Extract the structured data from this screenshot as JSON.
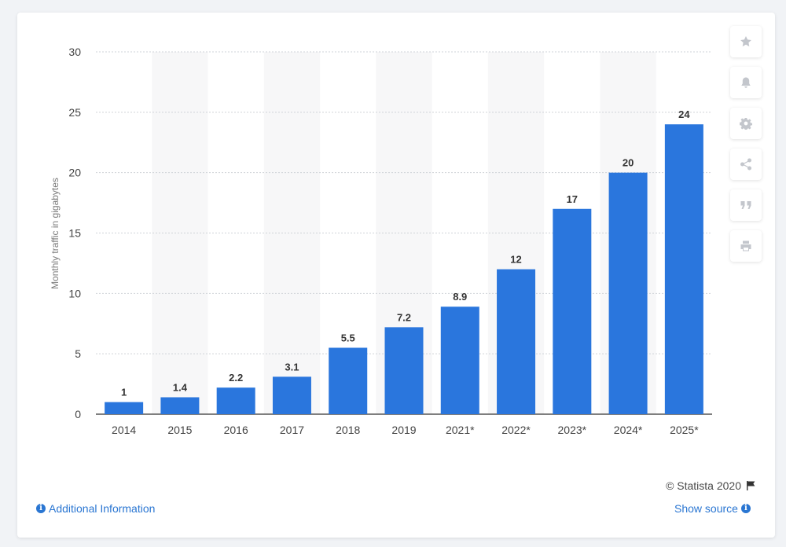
{
  "chart_data": {
    "type": "bar",
    "categories": [
      "2014",
      "2015",
      "2016",
      "2017",
      "2018",
      "2019",
      "2021*",
      "2022*",
      "2023*",
      "2024*",
      "2025*"
    ],
    "values": [
      1,
      1.4,
      2.2,
      3.1,
      5.5,
      7.2,
      8.9,
      12,
      17,
      20,
      24
    ],
    "value_labels": [
      "1",
      "1.4",
      "2.2",
      "3.1",
      "5.5",
      "7.2",
      "8.9",
      "12",
      "17",
      "20",
      "24"
    ],
    "ylabel": "Monthly traffic in gigabytes",
    "xlabel": "",
    "ylim": [
      0,
      30
    ],
    "yticks": [
      0,
      5,
      10,
      15,
      20,
      25,
      30
    ],
    "bar_color": "#2a76dd",
    "grid": true
  },
  "footer": {
    "copyright": "© Statista 2020",
    "additional_info": "Additional Information",
    "show_source": "Show source"
  },
  "sidebar": {
    "buttons": [
      {
        "name": "favorite-button",
        "icon": "star-icon"
      },
      {
        "name": "notification-button",
        "icon": "bell-icon"
      },
      {
        "name": "settings-button",
        "icon": "gear-icon"
      },
      {
        "name": "share-button",
        "icon": "share-icon"
      },
      {
        "name": "cite-button",
        "icon": "quote-icon"
      },
      {
        "name": "print-button",
        "icon": "print-icon"
      }
    ]
  }
}
